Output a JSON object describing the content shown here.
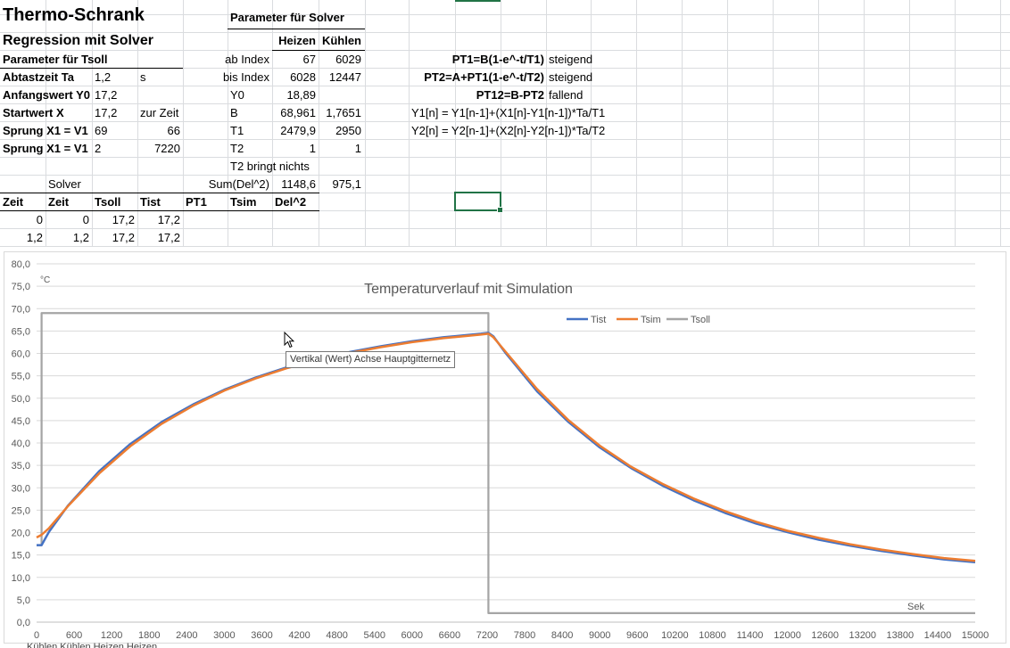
{
  "sheet": {
    "title": "Thermo-Schrank",
    "subtitle": "Regression mit Solver",
    "param_header": "Parameter für Tsoll",
    "rows_left": [
      {
        "label": "Abtastzeit Ta",
        "v1": "1,2",
        "v2": "s"
      },
      {
        "label": "Anfangswert Y0",
        "v1": "17,2",
        "v2": ""
      },
      {
        "label": "Startwert X",
        "v1": "17,2",
        "v2": "zur Zeit"
      },
      {
        "label": "Sprung X1 = V1",
        "v1": "69",
        "v2": "66"
      },
      {
        "label": "Sprung X1 = V1",
        "v1": "2",
        "v2": "7220"
      }
    ],
    "solver_params": {
      "title": "Parameter für Solver",
      "col_heizen": "Heizen",
      "col_kuehlen": "Kühlen",
      "rows": [
        {
          "label": "ab Index",
          "heizen": "67",
          "kuehlen": "6029"
        },
        {
          "label": "bis Index",
          "heizen": "6028",
          "kuehlen": "12447"
        },
        {
          "label": "Y0",
          "heizen": "18,89",
          "kuehlen": ""
        },
        {
          "label": "B",
          "heizen": "68,961",
          "kuehlen": "1,7651"
        },
        {
          "label": "T1",
          "heizen": "2479,9",
          "kuehlen": "2950"
        },
        {
          "label": "T2",
          "heizen": "1",
          "kuehlen": "1"
        }
      ],
      "note": "T2 bringt nichts",
      "sum_label": "Sum(Del^2)",
      "sum_heizen": "1148,6",
      "sum_kuehlen": "975,1"
    },
    "formulas": [
      {
        "name": "PT1=B(1-e^-t/T1)",
        "desc": "steigend"
      },
      {
        "name": "PT2=A+PT1(1-e^-t/T2)",
        "desc": "steigend"
      },
      {
        "name": "PT12=B-PT2",
        "desc": "fallend"
      }
    ],
    "equations": [
      "Y1[n] = Y1[n-1]+(X1[n]-Y1[n-1])*Ta/T1",
      "Y2[n] = Y2[n-1]+(X2[n]-Y2[n-1])*Ta/T2"
    ],
    "solver_label": "Solver",
    "table_headers": [
      "Zeit",
      "Zeit",
      "Tsoll",
      "Tist",
      "PT1",
      "Tsim",
      "Del^2"
    ],
    "table_rows": [
      [
        "0",
        "0",
        "17,2",
        "17,2"
      ],
      [
        "1,2",
        "1,2",
        "17,2",
        "17,2"
      ]
    ]
  },
  "tooltip": "Vertikal (Wert) Achse Hauptgitternetz",
  "bottom_clip": "Kühlen Kühlen Heizen Heizen",
  "chart_data": {
    "type": "line",
    "title": "Temperaturverlauf mit Simulation",
    "ylabel": "°C",
    "xlabel": "Sek",
    "xlim": [
      0,
      15000
    ],
    "ylim": [
      0,
      80
    ],
    "x_ticks": [
      0,
      600,
      1200,
      1800,
      2400,
      3000,
      3600,
      4200,
      4800,
      5400,
      6000,
      6600,
      7200,
      7800,
      8400,
      9000,
      9600,
      10200,
      10800,
      11400,
      12000,
      12600,
      13200,
      13800,
      14400,
      15000
    ],
    "y_ticks": [
      "0,0",
      "5,0",
      "10,0",
      "15,0",
      "20,0",
      "25,0",
      "30,0",
      "35,0",
      "40,0",
      "45,0",
      "50,0",
      "55,0",
      "60,0",
      "65,0",
      "70,0",
      "75,0",
      "80,0"
    ],
    "grid": "horizontal",
    "legend": "top-right",
    "series": [
      {
        "name": "Tist",
        "color": "#4472c4",
        "x": [
          0,
          80,
          200,
          500,
          1000,
          1500,
          2000,
          2500,
          3000,
          3500,
          4000,
          4500,
          5000,
          5500,
          6000,
          6500,
          7100,
          7220,
          7300,
          7500,
          8000,
          8500,
          9000,
          9500,
          10000,
          10500,
          11000,
          11500,
          12000,
          12500,
          13000,
          13500,
          14000,
          14500,
          15000
        ],
        "y": [
          17.2,
          17.2,
          20.2,
          26.0,
          33.7,
          39.8,
          44.7,
          48.6,
          51.9,
          54.6,
          56.9,
          58.7,
          60.3,
          61.6,
          62.7,
          63.6,
          64.4,
          64.6,
          63.8,
          60.0,
          51.5,
          44.7,
          39.0,
          34.4,
          30.5,
          27.2,
          24.4,
          22.0,
          20.1,
          18.4,
          17.1,
          15.9,
          14.9,
          14.0,
          13.4
        ]
      },
      {
        "name": "Tsim",
        "color": "#ed7d31",
        "x": [
          0,
          80,
          200,
          500,
          1000,
          1500,
          2000,
          2500,
          3000,
          3500,
          4000,
          4500,
          5000,
          5500,
          6000,
          6500,
          7100,
          7220,
          7300,
          7500,
          8000,
          8500,
          9000,
          9500,
          10000,
          10500,
          11000,
          11500,
          12000,
          12500,
          13000,
          13500,
          14000,
          14500,
          15000
        ],
        "y": [
          18.9,
          19.5,
          21.0,
          25.9,
          33.2,
          39.3,
          44.3,
          48.3,
          51.7,
          54.4,
          56.7,
          58.5,
          60.1,
          61.4,
          62.5,
          63.4,
          64.2,
          64.4,
          63.6,
          60.3,
          52.0,
          45.1,
          39.4,
          34.7,
          30.9,
          27.6,
          24.8,
          22.4,
          20.4,
          18.8,
          17.4,
          16.2,
          15.2,
          14.3,
          13.7
        ]
      },
      {
        "name": "Tsoll",
        "color": "#a5a5a5",
        "x": [
          0,
          80,
          80,
          7220,
          7220,
          15000
        ],
        "y": [
          17.2,
          17.2,
          69.0,
          69.0,
          2.0,
          2.0
        ]
      }
    ]
  }
}
